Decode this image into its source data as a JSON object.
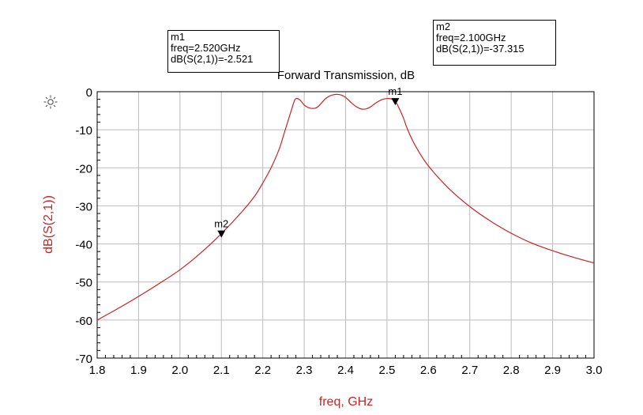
{
  "chart_data": {
    "type": "line",
    "title": "Forward Transmission, dB",
    "xlabel": "freq, GHz",
    "ylabel": "dB(S(2,1))",
    "xlim": [
      1.8,
      3.0
    ],
    "ylim": [
      -70,
      0
    ],
    "xticks": [
      "1.8",
      "1.9",
      "2.0",
      "2.1",
      "2.2",
      "2.3",
      "2.4",
      "2.5",
      "2.6",
      "2.7",
      "2.8",
      "2.9",
      "3.0"
    ],
    "yticks": [
      "0",
      "-10",
      "-20",
      "-30",
      "-40",
      "-50",
      "-60",
      "-70"
    ],
    "grid": true,
    "series": [
      {
        "x": [
          1.8,
          1.85,
          1.9,
          1.95,
          2.0,
          2.05,
          2.1,
          2.15,
          2.18,
          2.2,
          2.22,
          2.24,
          2.25,
          2.26,
          2.27,
          2.275,
          2.28,
          2.29,
          2.3,
          2.31,
          2.32,
          2.33,
          2.34,
          2.35,
          2.36,
          2.37,
          2.38,
          2.39,
          2.4,
          2.41,
          2.42,
          2.43,
          2.44,
          2.45,
          2.46,
          2.47,
          2.48,
          2.49,
          2.5,
          2.51,
          2.52,
          2.53,
          2.54,
          2.55,
          2.57,
          2.6,
          2.65,
          2.7,
          2.75,
          2.8,
          2.85,
          2.9,
          2.95,
          3.0
        ],
        "y": [
          -60.0,
          -57.0,
          -53.8,
          -50.4,
          -46.8,
          -42.4,
          -37.3,
          -31.5,
          -27.5,
          -24.0,
          -20.0,
          -15.0,
          -11.5,
          -8.0,
          -4.5,
          -2.8,
          -1.8,
          -2.2,
          -3.5,
          -4.2,
          -4.4,
          -4.2,
          -3.2,
          -2.0,
          -1.2,
          -0.8,
          -0.7,
          -0.9,
          -1.5,
          -2.5,
          -3.5,
          -4.2,
          -4.6,
          -4.5,
          -4.0,
          -3.2,
          -2.5,
          -2.0,
          -1.8,
          -1.9,
          -2.5,
          -4.5,
          -7.0,
          -10.0,
          -14.5,
          -19.5,
          -25.5,
          -30.2,
          -34.0,
          -37.2,
          -39.8,
          -41.8,
          -43.5,
          -45.0
        ]
      }
    ],
    "line_color": "#cc2222",
    "axis_label_color": "#cc2222",
    "markers": [
      {
        "name": "m1",
        "x": 2.52,
        "y": -2.521
      },
      {
        "name": "m2",
        "x": 2.1,
        "y": -37.315
      }
    ]
  },
  "marker_readouts": {
    "m1": {
      "name": "m1",
      "freq": "freq=2.520GHz",
      "value": "dB(S(2,1))=-2.521"
    },
    "m2": {
      "name": "m2",
      "freq": "freq=2.100GHz",
      "value": "dB(S(2,1))=-37.315"
    }
  },
  "icons": {
    "settings": "sun-icon"
  }
}
